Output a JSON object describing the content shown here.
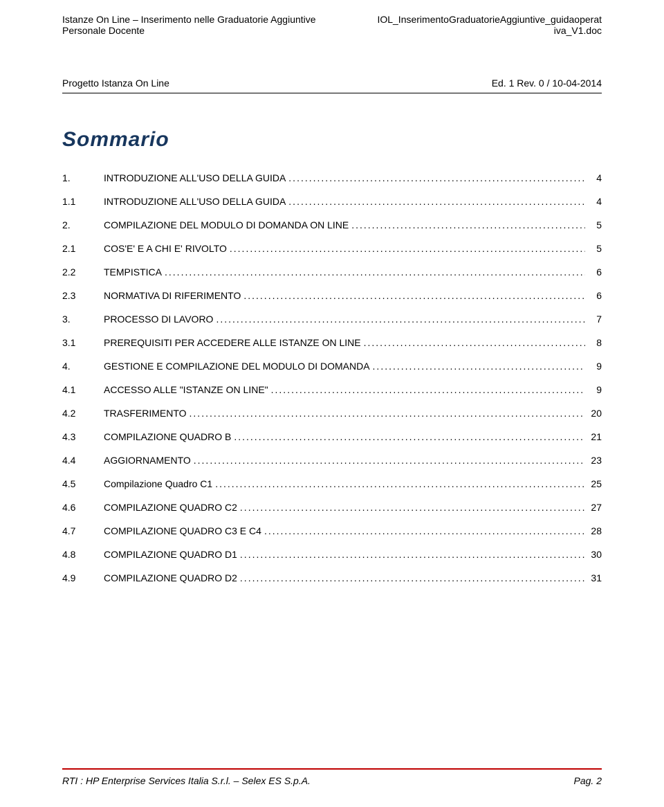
{
  "header": {
    "left_line1": "Istanze On Line – Inserimento nelle Graduatorie Aggiuntive",
    "left_line2": "Personale Docente",
    "right_line1": "IOL_InserimentoGraduatorieAggiuntive_guidaoperat",
    "right_line2": "iva_V1.doc"
  },
  "project": {
    "left": "Progetto Istanza On Line",
    "right": "Ed. 1 Rev. 0 / 10-04-2014"
  },
  "summary_title": "Sommario",
  "toc": [
    {
      "level": 1,
      "num": "1.",
      "label": "INTRODUZIONE ALL'USO DELLA GUIDA",
      "page": "4"
    },
    {
      "level": 2,
      "num": "1.1",
      "label": "INTRODUZIONE ALL'USO DELLA GUIDA",
      "page": "4"
    },
    {
      "level": 1,
      "num": "2.",
      "label": "COMPILAZIONE DEL MODULO DI DOMANDA ON LINE",
      "page": "5"
    },
    {
      "level": 2,
      "num": "2.1",
      "label": "COS'E' E A CHI E' RIVOLTO",
      "page": "5"
    },
    {
      "level": 2,
      "num": "2.2",
      "label": "TEMPISTICA",
      "page": "6"
    },
    {
      "level": 2,
      "num": "2.3",
      "label": "NORMATIVA DI RIFERIMENTO",
      "page": "6"
    },
    {
      "level": 1,
      "num": "3.",
      "label": "PROCESSO DI LAVORO",
      "page": "7"
    },
    {
      "level": 2,
      "num": "3.1",
      "label": "PREREQUISITI PER ACCEDERE ALLE ISTANZE ON LINE",
      "page": "8"
    },
    {
      "level": 1,
      "num": "4.",
      "label": "GESTIONE E COMPILAZIONE DEL MODULO DI DOMANDA",
      "page": "9"
    },
    {
      "level": 2,
      "num": "4.1",
      "label": "ACCESSO ALLE \"ISTANZE ON LINE\"",
      "page": "9"
    },
    {
      "level": 2,
      "num": "4.2",
      "label": "TRASFERIMENTO",
      "page": "20"
    },
    {
      "level": 2,
      "num": "4.3",
      "label": "COMPILAZIONE QUADRO B",
      "page": "21"
    },
    {
      "level": 2,
      "num": "4.4",
      "label": "AGGIORNAMENTO",
      "page": "23"
    },
    {
      "level": 2,
      "num": "4.5",
      "label": "Compilazione Quadro C1",
      "page": "25"
    },
    {
      "level": 2,
      "num": "4.6",
      "label": "COMPILAZIONE QUADRO C2",
      "page": "27"
    },
    {
      "level": 2,
      "num": "4.7",
      "label": "COMPILAZIONE QUADRO C3 E C4",
      "page": "28"
    },
    {
      "level": 2,
      "num": "4.8",
      "label": "COMPILAZIONE QUADRO D1",
      "page": "30"
    },
    {
      "level": 2,
      "num": "4.9",
      "label": "COMPILAZIONE QUADRO D2",
      "page": "31"
    }
  ],
  "footer": {
    "left": "RTI : HP Enterprise Services Italia S.r.l. – Selex ES S.p.A.",
    "right": "Pag. 2",
    "divider_color": "#c00000"
  },
  "colors": {
    "title_color": "#17365d",
    "text_color": "#000000",
    "background": "#ffffff"
  }
}
